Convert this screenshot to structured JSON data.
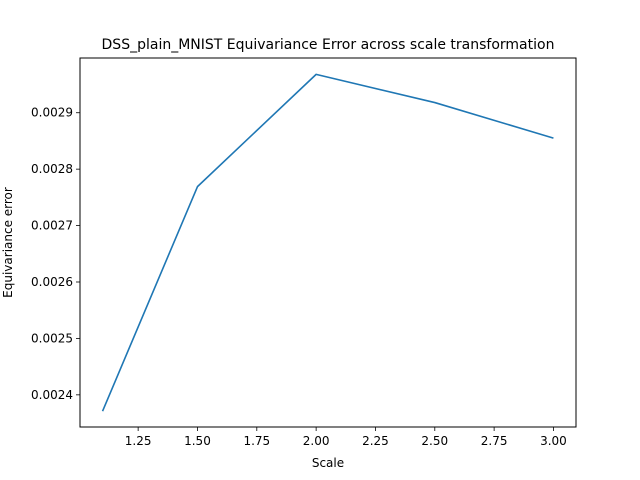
{
  "chart_data": {
    "type": "line",
    "title": "DSS_plain_MNIST Equivariance Error across scale transformation",
    "xlabel": "Scale",
    "ylabel": "Equivariance error",
    "xlim": [
      1.005,
      3.095
    ],
    "ylim": [
      0.002343,
      0.002997
    ],
    "grid": false,
    "x_ticks": [
      1.25,
      1.5,
      1.75,
      2.0,
      2.25,
      2.5,
      2.75,
      3.0
    ],
    "x_tick_labels": [
      "1.25",
      "1.50",
      "1.75",
      "2.00",
      "2.25",
      "2.50",
      "2.75",
      "3.00"
    ],
    "y_ticks": [
      0.0024,
      0.0025,
      0.0026,
      0.0027,
      0.0028,
      0.0029
    ],
    "y_tick_labels": [
      "0.0024",
      "0.0025",
      "0.0026",
      "0.0027",
      "0.0028",
      "0.0029"
    ],
    "series": [
      {
        "color": "#1f77b4",
        "x": [
          1.1,
          1.5,
          2.0,
          2.5,
          3.0
        ],
        "y": [
          0.002371,
          0.002769,
          0.002968,
          0.002918,
          0.002855
        ]
      }
    ]
  }
}
